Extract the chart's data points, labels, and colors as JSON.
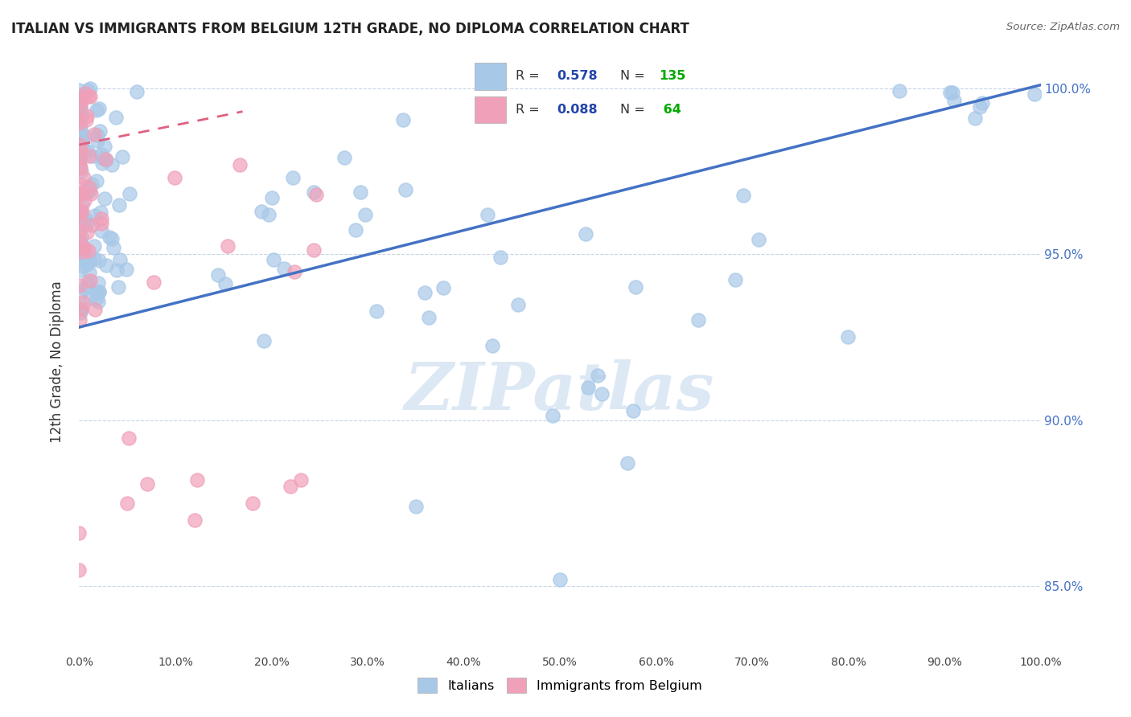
{
  "title": "ITALIAN VS IMMIGRANTS FROM BELGIUM 12TH GRADE, NO DIPLOMA CORRELATION CHART",
  "source": "Source: ZipAtlas.com",
  "ylabel": "12th Grade, No Diploma",
  "x_min": 0.0,
  "x_max": 1.0,
  "y_min": 0.83,
  "y_max": 1.005,
  "x_ticks": [
    0.0,
    0.1,
    0.2,
    0.3,
    0.4,
    0.5,
    0.6,
    0.7,
    0.8,
    0.9,
    1.0
  ],
  "x_tick_labels": [
    "0.0%",
    "10.0%",
    "20.0%",
    "30.0%",
    "40.0%",
    "50.0%",
    "60.0%",
    "70.0%",
    "80.0%",
    "90.0%",
    "100.0%"
  ],
  "y_ticks": [
    0.85,
    0.9,
    0.95,
    1.0
  ],
  "y_tick_labels": [
    "85.0%",
    "90.0%",
    "95.0%",
    "100.0%"
  ],
  "blue_R": 0.578,
  "blue_N": 135,
  "pink_R": 0.088,
  "pink_N": 64,
  "blue_color": "#a8c8e8",
  "pink_color": "#f0a0b8",
  "blue_line_color": "#4472C4",
  "pink_line_color": "#E06080",
  "pink_line_dash_color": "#d08090",
  "legend_R_color": "#2244AA",
  "legend_N_color": "#00AA00",
  "background_color": "#ffffff",
  "grid_color": "#c8d4e8",
  "grid_style": "--",
  "watermark_text": "ZIPatlas",
  "watermark_color": "#dce8f4",
  "blue_line_y0": 0.928,
  "blue_line_y1": 1.001,
  "pink_line_y0": 0.983,
  "pink_line_y1": 0.993,
  "pink_line_x1": 0.17
}
